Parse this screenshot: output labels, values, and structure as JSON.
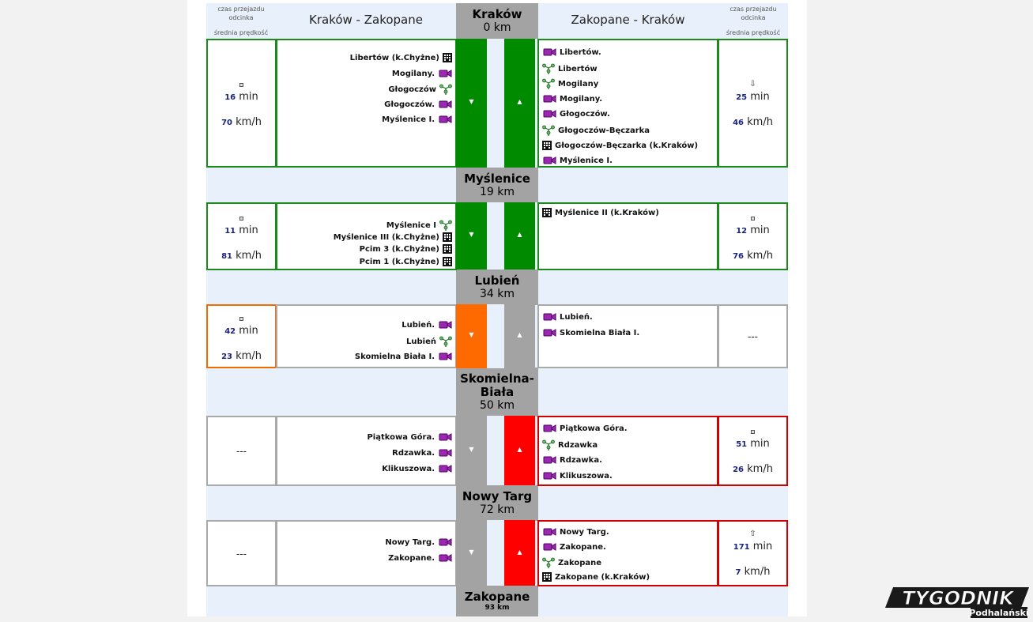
{
  "header": {
    "left_small_line1": "czas przejazdu",
    "left_small_line2": "odcinka",
    "left_small_line3": "średnia prędkość",
    "right_small_line1": "czas przejazdu",
    "right_small_line2": "odcinka",
    "right_small_line3": "średnia prędkość",
    "direction_left": "Kraków - Zakopane",
    "direction_right": "Zakopane - Kraków"
  },
  "cities": [
    {
      "name": "Kraków",
      "km": "0 km"
    },
    {
      "name": "Myślenice",
      "km": "19 km"
    },
    {
      "name": "Lubień",
      "km": "34 km"
    },
    {
      "name": "Skomielna-",
      "name2": "Biała",
      "km": "50 km"
    },
    {
      "name": "Nowy Targ",
      "km": "72 km"
    },
    {
      "name": "Zakopane",
      "km": "93 km"
    }
  ],
  "units": {
    "min": "min",
    "speed": "km/h",
    "none": "---"
  },
  "segments": [
    {
      "left_time": "16",
      "left_speed": "70",
      "right_time": "25",
      "right_speed": "46",
      "left_items": [
        {
          "label": "Libertów (k.Chyżne)",
          "icon": "building-icon"
        },
        {
          "label": "Mogilany.",
          "icon": "camera-icon"
        },
        {
          "label": "Głogoczów",
          "icon": "weather-station-icon"
        },
        {
          "label": "Głogoczów.",
          "icon": "camera-icon"
        },
        {
          "label": "Myślenice I.",
          "icon": "camera-icon"
        }
      ],
      "right_items": [
        {
          "label": "Libertów.",
          "icon": "camera-icon"
        },
        {
          "label": "Libertów",
          "icon": "weather-station-icon"
        },
        {
          "label": "Mogilany",
          "icon": "weather-station-icon"
        },
        {
          "label": "Mogilany.",
          "icon": "camera-icon"
        },
        {
          "label": "Głogoczów.",
          "icon": "camera-icon"
        },
        {
          "label": "Głogoczów-Bęczarka",
          "icon": "weather-station-icon"
        },
        {
          "label": "Głogoczów-Bęczarka (k.Kraków)",
          "icon": "building-icon"
        },
        {
          "label": "Myślenice I.",
          "icon": "camera-icon"
        }
      ]
    },
    {
      "left_time": "11",
      "left_speed": "81",
      "right_time": "12",
      "right_speed": "76",
      "left_items": [
        {
          "label": "Myślenice I",
          "icon": "weather-station-icon"
        },
        {
          "label": "Myślenice III (k.Chyżne)",
          "icon": "building-icon"
        },
        {
          "label": "Pcim 3 (k.Chyżne)",
          "icon": "building-icon"
        },
        {
          "label": "Pcim 1 (k.Chyżne)",
          "icon": "building-icon"
        }
      ],
      "right_items": [
        {
          "label": "Myślenice II (k.Kraków)",
          "icon": "building-icon"
        }
      ]
    },
    {
      "left_time": "42",
      "left_speed": "23",
      "left_items": [
        {
          "label": "Lubień.",
          "icon": "camera-icon"
        },
        {
          "label": "Lubień",
          "icon": "weather-station-icon"
        },
        {
          "label": "Skomielna Biała I.",
          "icon": "camera-icon"
        }
      ],
      "right_items": [
        {
          "label": "Lubień.",
          "icon": "camera-icon"
        },
        {
          "label": "Skomielna Biała I.",
          "icon": "camera-icon"
        }
      ]
    },
    {
      "right_time": "51",
      "right_speed": "26",
      "left_items": [
        {
          "label": "Piątkowa Góra.",
          "icon": "camera-icon"
        },
        {
          "label": "Rdzawka.",
          "icon": "camera-icon"
        },
        {
          "label": "Klikuszowa.",
          "icon": "camera-icon"
        }
      ],
      "right_items": [
        {
          "label": "Piątkowa Góra.",
          "icon": "camera-icon"
        },
        {
          "label": "Rdzawka",
          "icon": "weather-station-icon"
        },
        {
          "label": "Rdzawka.",
          "icon": "camera-icon"
        },
        {
          "label": "Klikuszowa.",
          "icon": "camera-icon"
        }
      ]
    },
    {
      "right_time": "171",
      "right_speed": "7",
      "left_items": [
        {
          "label": "Nowy Targ.",
          "icon": "camera-icon"
        },
        {
          "label": "Zakopane.",
          "icon": "camera-icon"
        }
      ],
      "right_items": [
        {
          "label": "Nowy Targ.",
          "icon": "camera-icon"
        },
        {
          "label": "Zakopane.",
          "icon": "camera-icon"
        },
        {
          "label": "Zakopane",
          "icon": "weather-station-icon"
        },
        {
          "label": "Zakopane (k.Kraków)",
          "icon": "building-icon"
        }
      ]
    }
  ],
  "colors": {
    "green": "#008a00",
    "orange": "#ff6a00",
    "red": "#ff0000",
    "gray": "#a3a3a3"
  },
  "logo": {
    "word": "TYGODNIK",
    "sub": "Podhalański"
  }
}
